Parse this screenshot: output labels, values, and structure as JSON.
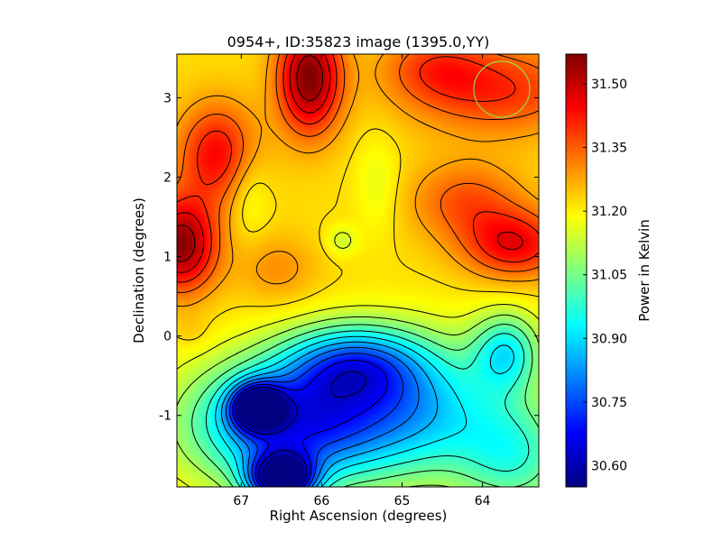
{
  "chart_data": {
    "type": "heatmap",
    "title": "0954+, ID:35823 image (1395.0,YY)",
    "xlabel": "Right Ascension (degrees)",
    "ylabel": "Declination (degrees)",
    "xlim": [
      67.8,
      63.3
    ],
    "ylim": [
      -1.9,
      3.55
    ],
    "x_ticks": [
      67,
      66,
      65,
      64
    ],
    "y_ticks": [
      -1,
      0,
      1,
      2,
      3
    ],
    "colormap": "jet",
    "colorbar": {
      "label": "Power in Kelvin",
      "vmin": 30.55,
      "vmax": 31.57,
      "ticks": [
        "30.60",
        "30.75",
        "30.90",
        "31.05",
        "31.20",
        "31.35",
        "31.50"
      ]
    },
    "background_level": 31.22,
    "features": [
      {
        "ra": 66.15,
        "dec": 3.25,
        "value": 31.57,
        "sx": 0.28,
        "sy": 0.5
      },
      {
        "ra": 67.75,
        "dec": 1.15,
        "value": 31.56,
        "sx": 0.32,
        "sy": 0.42
      },
      {
        "ra": 67.3,
        "dec": 2.3,
        "value": 31.44,
        "sx": 0.35,
        "sy": 0.45
      },
      {
        "ra": 63.8,
        "dec": 3.1,
        "value": 31.4,
        "sx": 0.8,
        "sy": 0.4
      },
      {
        "ra": 64.6,
        "dec": 3.4,
        "value": 31.34,
        "sx": 0.45,
        "sy": 0.3
      },
      {
        "ra": 63.6,
        "dec": 1.15,
        "value": 31.45,
        "sx": 0.45,
        "sy": 0.3
      },
      {
        "ra": 64.2,
        "dec": 1.7,
        "value": 31.36,
        "sx": 0.5,
        "sy": 0.35
      },
      {
        "ra": 66.55,
        "dec": 0.85,
        "value": 31.3,
        "sx": 0.35,
        "sy": 0.3
      },
      {
        "ra": 65.3,
        "dec": 1.9,
        "value": 31.16,
        "sx": 0.2,
        "sy": 0.45
      },
      {
        "ra": 66.9,
        "dec": 1.8,
        "value": 31.15,
        "sx": 0.18,
        "sy": 0.4
      },
      {
        "ra": 65.75,
        "dec": 1.2,
        "value": 31.14,
        "sx": 0.14,
        "sy": 0.14
      },
      {
        "ra": 64.3,
        "dec": 2.3,
        "value": 31.22,
        "sx": 0.14,
        "sy": 0.1
      },
      {
        "ra": 66.3,
        "dec": -1.1,
        "value": 30.7,
        "sx": 0.9,
        "sy": 0.55
      },
      {
        "ra": 66.5,
        "dec": -1.8,
        "value": 30.58,
        "sx": 0.28,
        "sy": 0.22
      },
      {
        "ra": 66.8,
        "dec": -0.9,
        "value": 30.68,
        "sx": 0.22,
        "sy": 0.2
      },
      {
        "ra": 65.6,
        "dec": -0.35,
        "value": 30.88,
        "sx": 0.6,
        "sy": 0.35
      },
      {
        "ra": 64.7,
        "dec": -0.9,
        "value": 30.97,
        "sx": 0.7,
        "sy": 0.6
      },
      {
        "ra": 63.7,
        "dec": -0.2,
        "value": 30.96,
        "sx": 0.3,
        "sy": 0.35
      },
      {
        "ra": 63.6,
        "dec": -1.5,
        "value": 31.0,
        "sx": 0.5,
        "sy": 0.5
      },
      {
        "ra": 67.6,
        "dec": 0.05,
        "value": 31.25,
        "sx": 0.15,
        "sy": 0.15
      }
    ]
  }
}
